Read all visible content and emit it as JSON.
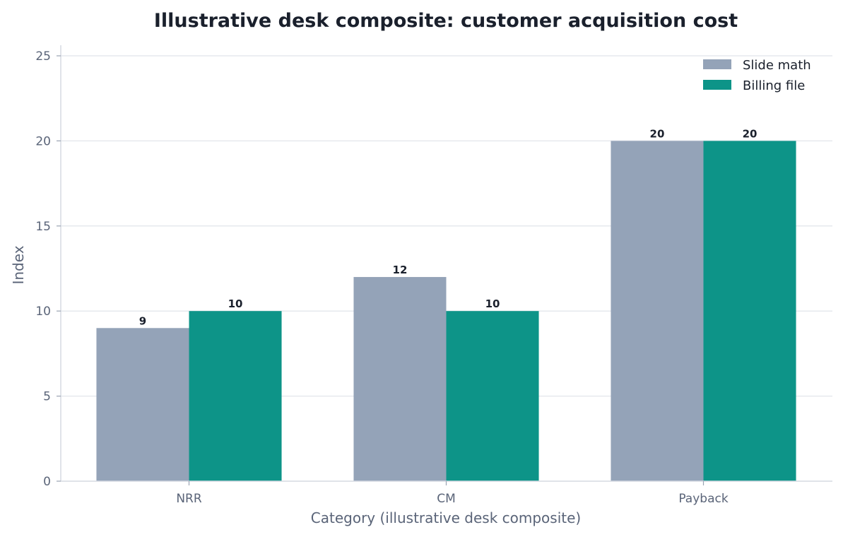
{
  "chart_data": {
    "type": "bar",
    "title": "Illustrative desk composite: customer acquisition cost",
    "xlabel": "Category (illustrative desk composite)",
    "ylabel": "Index",
    "categories": [
      "NRR",
      "CM",
      "Payback"
    ],
    "series": [
      {
        "name": "Slide math",
        "values": [
          9,
          12,
          20
        ],
        "color": "#94a3b8"
      },
      {
        "name": "Billing file",
        "values": [
          10,
          10,
          20
        ],
        "color": "#0d9488"
      }
    ],
    "ylim": [
      0,
      25
    ],
    "yticks": [
      0,
      5,
      10,
      15,
      20,
      25
    ],
    "grid": "horizontal",
    "legend_position": "top-right",
    "data_labels": true
  }
}
